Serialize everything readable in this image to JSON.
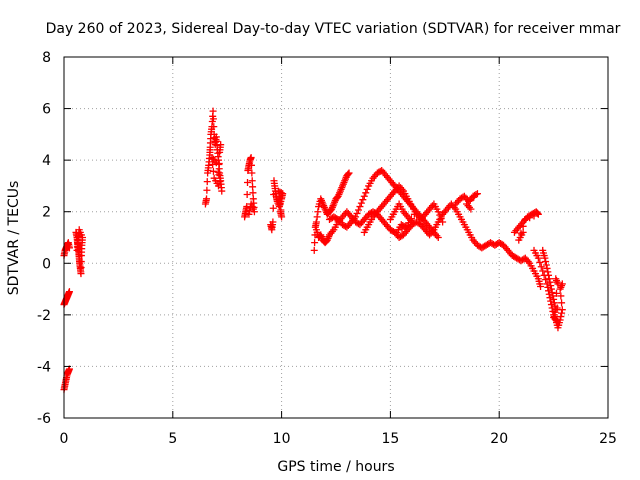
{
  "chart_data": {
    "type": "scatter",
    "title": "Day 260 of 2023, Sidereal Day-to-day VTEC variation (SDTVAR) for receiver mmar",
    "xlabel": "GPS time / hours",
    "ylabel": "SDTVAR / TECUs",
    "xlim": [
      0,
      25
    ],
    "ylim": [
      -6,
      8
    ],
    "xticks": [
      0,
      5,
      10,
      15,
      20,
      25
    ],
    "yticks": [
      -6,
      -4,
      -2,
      0,
      2,
      4,
      6,
      8
    ],
    "grid": true,
    "marker": "plus",
    "color": "#ff0000",
    "series": [
      {
        "name": "SDTVAR",
        "segments": [
          [
            [
              0.0,
              0.3
            ],
            [
              0.05,
              0.5
            ],
            [
              0.1,
              0.6
            ],
            [
              0.15,
              0.7
            ],
            [
              0.2,
              0.8
            ],
            [
              0.25,
              0.6
            ]
          ],
          [
            [
              0.0,
              -1.6
            ],
            [
              0.05,
              -1.5
            ],
            [
              0.1,
              -1.4
            ],
            [
              0.15,
              -1.3
            ],
            [
              0.2,
              -1.2
            ],
            [
              0.25,
              -1.1
            ]
          ],
          [
            [
              0.0,
              -4.9
            ],
            [
              0.05,
              -4.7
            ],
            [
              0.1,
              -4.5
            ],
            [
              0.15,
              -4.3
            ],
            [
              0.2,
              -4.2
            ],
            [
              0.25,
              -4.1
            ]
          ],
          [
            [
              0.55,
              1.2
            ],
            [
              0.6,
              1.0
            ],
            [
              0.62,
              0.8
            ],
            [
              0.65,
              0.6
            ],
            [
              0.68,
              0.4
            ],
            [
              0.7,
              0.2
            ],
            [
              0.72,
              0.0
            ],
            [
              0.75,
              -0.2
            ],
            [
              0.78,
              -0.4
            ],
            [
              0.8,
              0.3
            ],
            [
              0.82,
              0.7
            ],
            [
              0.85,
              1.0
            ],
            [
              0.7,
              1.3
            ],
            [
              0.65,
              0.9
            ],
            [
              0.6,
              0.5
            ]
          ],
          [
            [
              6.5,
              2.3
            ],
            [
              6.55,
              2.5
            ],
            [
              6.6,
              3.5
            ],
            [
              6.65,
              3.8
            ],
            [
              6.7,
              4.2
            ],
            [
              6.72,
              4.5
            ],
            [
              6.75,
              5.0
            ],
            [
              6.8,
              5.3
            ],
            [
              6.85,
              5.9
            ],
            [
              6.9,
              5.0
            ],
            [
              6.95,
              4.6
            ],
            [
              7.0,
              4.9
            ],
            [
              7.05,
              4.4
            ],
            [
              7.1,
              4.0
            ],
            [
              7.15,
              3.5
            ],
            [
              7.2,
              3.2
            ],
            [
              7.25,
              2.8
            ],
            [
              7.0,
              3.9
            ],
            [
              6.8,
              4.1
            ],
            [
              6.9,
              3.3
            ],
            [
              7.1,
              3.0
            ],
            [
              7.15,
              4.3
            ],
            [
              7.2,
              4.6
            ]
          ],
          [
            [
              8.3,
              1.8
            ],
            [
              8.35,
              2.0
            ],
            [
              8.4,
              2.2
            ],
            [
              8.45,
              3.6
            ],
            [
              8.5,
              3.8
            ],
            [
              8.55,
              4.0
            ],
            [
              8.6,
              4.1
            ],
            [
              8.65,
              3.2
            ],
            [
              8.7,
              2.5
            ],
            [
              8.75,
              2.0
            ],
            [
              8.6,
              2.3
            ],
            [
              8.5,
              1.9
            ]
          ],
          [
            [
              9.5,
              1.5
            ],
            [
              9.55,
              1.3
            ],
            [
              9.6,
              1.6
            ],
            [
              9.65,
              3.2
            ],
            [
              9.7,
              2.9
            ],
            [
              9.75,
              2.6
            ],
            [
              9.8,
              2.4
            ],
            [
              9.9,
              2.2
            ],
            [
              10.0,
              2.5
            ],
            [
              10.05,
              2.7
            ],
            [
              9.85,
              2.8
            ],
            [
              9.95,
              2.0
            ],
            [
              10.0,
              1.8
            ],
            [
              9.9,
              2.6
            ]
          ],
          [
            [
              11.5,
              0.5
            ],
            [
              11.55,
              1.4
            ],
            [
              11.6,
              1.6
            ],
            [
              11.7,
              2.2
            ],
            [
              11.8,
              2.5
            ],
            [
              11.9,
              2.3
            ],
            [
              12.0,
              2.1
            ],
            [
              12.1,
              1.9
            ],
            [
              12.2,
              2.0
            ],
            [
              12.3,
              2.1
            ],
            [
              12.4,
              2.3
            ],
            [
              12.5,
              2.5
            ],
            [
              12.6,
              2.6
            ],
            [
              12.7,
              2.8
            ],
            [
              12.8,
              3.0
            ],
            [
              12.9,
              3.2
            ],
            [
              13.0,
              3.4
            ],
            [
              13.1,
              3.5
            ]
          ],
          [
            [
              11.6,
              1.3
            ],
            [
              11.7,
              1.0
            ],
            [
              11.8,
              1.1
            ],
            [
              11.9,
              0.9
            ],
            [
              12.0,
              0.8
            ],
            [
              12.1,
              0.9
            ],
            [
              12.2,
              1.1
            ],
            [
              12.4,
              1.3
            ],
            [
              12.6,
              1.6
            ],
            [
              12.8,
              1.8
            ],
            [
              13.0,
              2.0
            ],
            [
              13.2,
              1.8
            ],
            [
              13.4,
              1.6
            ],
            [
              13.6,
              1.5
            ],
            [
              13.8,
              1.7
            ],
            [
              14.0,
              1.9
            ],
            [
              14.2,
              2.0
            ],
            [
              14.4,
              1.9
            ],
            [
              14.6,
              1.7
            ],
            [
              14.8,
              1.5
            ],
            [
              15.0,
              1.3
            ],
            [
              15.2,
              1.2
            ],
            [
              15.4,
              1.0
            ],
            [
              15.6,
              1.1
            ],
            [
              15.8,
              1.3
            ],
            [
              16.0,
              1.5
            ],
            [
              16.2,
              1.6
            ],
            [
              16.4,
              1.5
            ],
            [
              16.6,
              1.3
            ],
            [
              16.8,
              1.1
            ],
            [
              17.0,
              1.3
            ],
            [
              17.2,
              1.6
            ],
            [
              17.4,
              1.9
            ],
            [
              17.6,
              2.1
            ],
            [
              17.8,
              2.3
            ],
            [
              18.0,
              2.1
            ],
            [
              18.2,
              1.8
            ],
            [
              18.4,
              1.5
            ],
            [
              18.6,
              1.2
            ],
            [
              18.8,
              0.9
            ],
            [
              19.0,
              0.7
            ],
            [
              19.2,
              0.6
            ],
            [
              19.4,
              0.7
            ],
            [
              19.6,
              0.8
            ],
            [
              19.8,
              0.7
            ],
            [
              20.0,
              0.8
            ],
            [
              20.2,
              0.7
            ],
            [
              20.4,
              0.5
            ],
            [
              20.6,
              0.3
            ],
            [
              20.8,
              0.2
            ],
            [
              21.0,
              0.1
            ],
            [
              21.2,
              0.2
            ],
            [
              21.4,
              0.0
            ],
            [
              21.6,
              -0.3
            ],
            [
              21.8,
              -0.6
            ],
            [
              21.9,
              -0.9
            ]
          ],
          [
            [
              12.2,
              1.7
            ],
            [
              12.4,
              1.8
            ],
            [
              12.6,
              1.7
            ],
            [
              12.8,
              1.5
            ],
            [
              13.0,
              1.4
            ],
            [
              13.2,
              1.6
            ],
            [
              13.4,
              1.8
            ],
            [
              13.6,
              2.2
            ],
            [
              13.8,
              2.6
            ],
            [
              14.0,
              3.0
            ],
            [
              14.2,
              3.3
            ],
            [
              14.4,
              3.5
            ],
            [
              14.6,
              3.6
            ],
            [
              14.8,
              3.4
            ],
            [
              15.0,
              3.2
            ],
            [
              15.2,
              3.0
            ],
            [
              15.4,
              2.8
            ],
            [
              15.6,
              2.6
            ],
            [
              15.8,
              2.4
            ],
            [
              16.0,
              2.2
            ],
            [
              16.2,
              2.0
            ],
            [
              16.4,
              1.8
            ],
            [
              16.6,
              1.6
            ],
            [
              16.8,
              1.4
            ],
            [
              17.0,
              1.2
            ],
            [
              17.2,
              1.0
            ]
          ],
          [
            [
              13.8,
              1.2
            ],
            [
              14.0,
              1.5
            ],
            [
              14.2,
              1.8
            ],
            [
              14.4,
              2.0
            ],
            [
              14.6,
              2.2
            ],
            [
              14.8,
              2.4
            ],
            [
              15.0,
              2.6
            ],
            [
              15.2,
              2.8
            ],
            [
              15.4,
              3.0
            ],
            [
              15.6,
              2.8
            ],
            [
              15.8,
              2.5
            ],
            [
              16.0,
              2.2
            ],
            [
              16.2,
              1.9
            ],
            [
              16.4,
              1.7
            ],
            [
              16.6,
              1.9
            ],
            [
              16.8,
              2.1
            ],
            [
              17.0,
              2.3
            ],
            [
              17.2,
              2.0
            ],
            [
              17.4,
              1.6
            ]
          ],
          [
            [
              15.0,
              1.7
            ],
            [
              15.2,
              2.0
            ],
            [
              15.4,
              2.3
            ],
            [
              15.6,
              2.0
            ],
            [
              15.8,
              1.8
            ],
            [
              16.0,
              1.6
            ],
            [
              15.3,
              1.2
            ],
            [
              15.5,
              1.5
            ],
            [
              15.7,
              1.4
            ],
            [
              16.1,
              1.9
            ]
          ],
          [
            [
              18.0,
              2.3
            ],
            [
              18.2,
              2.5
            ],
            [
              18.4,
              2.6
            ],
            [
              18.6,
              2.4
            ],
            [
              18.8,
              2.6
            ],
            [
              19.0,
              2.7
            ],
            [
              18.5,
              2.3
            ],
            [
              18.7,
              2.1
            ]
          ],
          [
            [
              20.7,
              1.2
            ],
            [
              20.9,
              1.4
            ],
            [
              21.1,
              1.6
            ],
            [
              21.3,
              1.8
            ],
            [
              21.5,
              1.9
            ],
            [
              21.7,
              2.0
            ],
            [
              21.8,
              1.9
            ],
            [
              21.2,
              1.7
            ],
            [
              20.9,
              0.9
            ],
            [
              21.1,
              1.2
            ]
          ],
          [
            [
              21.6,
              0.5
            ],
            [
              21.8,
              0.2
            ],
            [
              22.0,
              -0.3
            ],
            [
              22.2,
              -0.8
            ],
            [
              22.3,
              -1.2
            ],
            [
              22.4,
              -1.6
            ],
            [
              22.5,
              -2.0
            ],
            [
              22.6,
              -2.2
            ],
            [
              22.7,
              -2.5
            ],
            [
              22.8,
              -2.2
            ],
            [
              22.9,
              -1.8
            ],
            [
              22.8,
              -1.0
            ],
            [
              22.9,
              -0.8
            ]
          ],
          [
            [
              22.0,
              0.5
            ],
            [
              22.1,
              0.2
            ],
            [
              22.2,
              -0.2
            ],
            [
              22.3,
              -0.6
            ],
            [
              22.4,
              -1.0
            ],
            [
              22.5,
              -1.4
            ],
            [
              22.6,
              -1.8
            ],
            [
              22.5,
              -2.1
            ],
            [
              22.7,
              -2.3
            ],
            [
              22.6,
              -0.6
            ],
            [
              22.7,
              -0.8
            ]
          ]
        ]
      }
    ]
  }
}
